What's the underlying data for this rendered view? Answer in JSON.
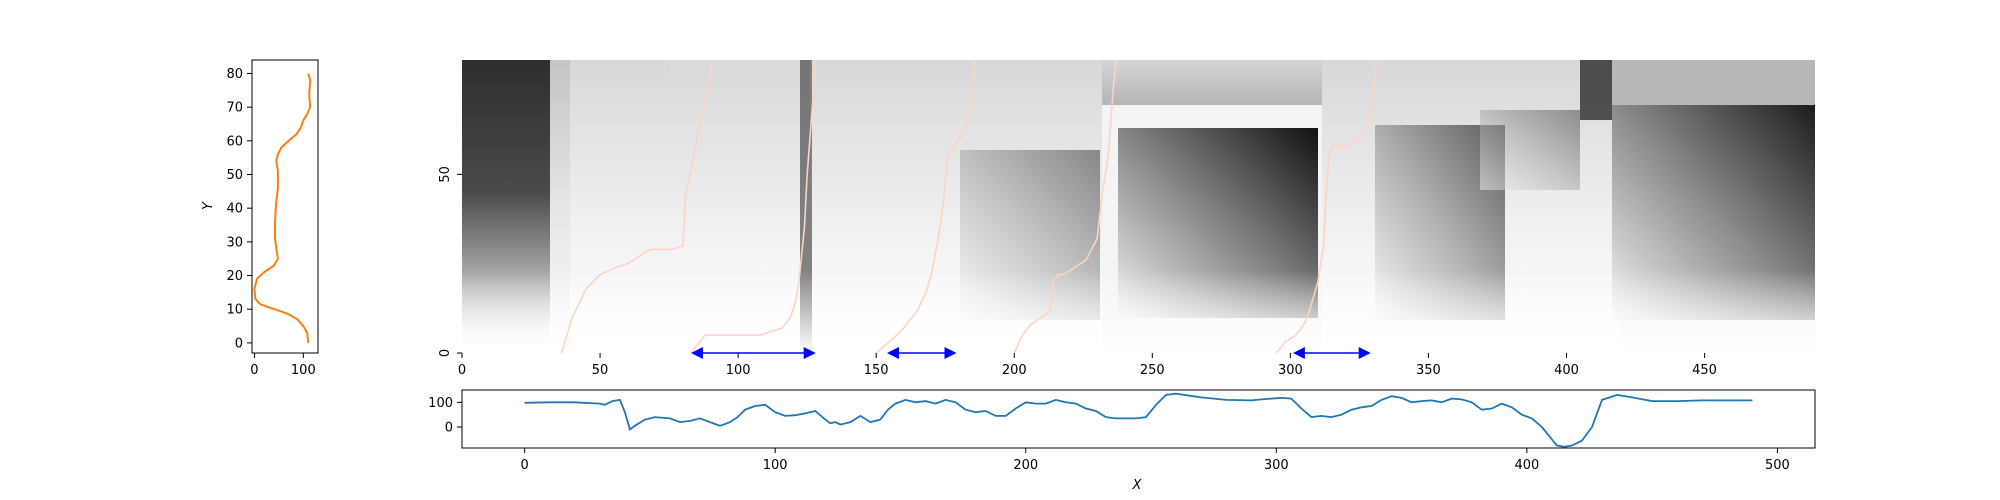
{
  "chart_data": [
    {
      "type": "line",
      "panel": "left-profile",
      "xlabel": "",
      "ylabel": "Y",
      "xlim": [
        -5,
        130
      ],
      "ylim": [
        -3,
        84
      ],
      "xticks": [
        0,
        100
      ],
      "yticks": [
        0,
        10,
        20,
        30,
        40,
        50,
        60,
        70,
        80
      ],
      "grid": false,
      "color": "#ff7f0e",
      "series": [
        {
          "x": [
            110,
            108,
            100,
            88,
            70,
            52,
            30,
            12,
            2,
            0,
            5,
            20,
            40,
            48,
            45,
            42,
            42,
            44,
            48,
            48,
            45,
            48,
            55,
            70,
            86,
            95,
            100,
            108,
            114,
            112,
            114,
            110
          ],
          "y": [
            0,
            3,
            5,
            7,
            8.5,
            9.5,
            10.5,
            11.5,
            13,
            16,
            19,
            21,
            23,
            25,
            28,
            31,
            36,
            41,
            46,
            51,
            54,
            56,
            58,
            60,
            62,
            64,
            66,
            68,
            70,
            74,
            78,
            80
          ]
        }
      ]
    },
    {
      "type": "heatmap",
      "panel": "main-cost-matrix",
      "xlim": [
        0,
        490
      ],
      "ylim": [
        0,
        82
      ],
      "xticks": [
        0,
        50,
        100,
        150,
        200,
        250,
        300,
        350,
        400,
        450
      ],
      "yticks": [
        0,
        50
      ],
      "colormap": "gray",
      "path_color": "#ffd2c2",
      "arrow_color": "#0000ff",
      "paths": [
        {
          "x": [
            36,
            40,
            45,
            50,
            56,
            60,
            64,
            68,
            72,
            76,
            80,
            81,
            84,
            86,
            88,
            89,
            90,
            90.5
          ],
          "y": [
            0,
            10,
            18,
            22,
            24,
            25,
            27,
            29,
            29,
            29,
            30,
            45,
            55,
            65,
            70,
            75,
            78,
            82
          ]
        },
        {
          "x": [
            83,
            86,
            88,
            92,
            98,
            108,
            116,
            119,
            121,
            122,
            124,
            125,
            126,
            127,
            128
          ],
          "y": [
            0,
            3,
            5,
            5,
            5,
            5,
            7,
            10,
            15,
            20,
            35,
            50,
            60,
            70,
            82
          ]
        },
        {
          "x": [
            150,
            153,
            156,
            160,
            165,
            168,
            170,
            172,
            174,
            176,
            180,
            182,
            184,
            186
          ],
          "y": [
            0,
            2,
            4,
            7,
            12,
            17,
            22,
            30,
            40,
            55,
            60,
            62,
            70,
            82
          ]
        },
        {
          "x": [
            200,
            203,
            206,
            210,
            213,
            214,
            216,
            218,
            220,
            226,
            230,
            232,
            234,
            235,
            236,
            237
          ],
          "y": [
            0,
            5,
            8,
            10,
            12,
            20,
            22,
            22,
            23,
            26,
            32,
            45,
            55,
            65,
            75,
            82
          ]
        },
        {
          "x": [
            295,
            298,
            302,
            305,
            307,
            310,
            312,
            313,
            314,
            315,
            320,
            325,
            328,
            330,
            331
          ],
          "y": [
            0,
            3,
            5,
            8,
            12,
            20,
            30,
            45,
            55,
            58,
            58,
            60,
            65,
            70,
            82
          ]
        }
      ],
      "arrows": [
        {
          "x1": 84,
          "x2": 127
        },
        {
          "x1": 155,
          "x2": 178
        },
        {
          "x1": 302,
          "x2": 328
        }
      ]
    },
    {
      "type": "line",
      "panel": "bottom-signal",
      "xlabel": "X",
      "ylabel": "",
      "xlim": [
        -25,
        515
      ],
      "ylim": [
        -85,
        150
      ],
      "xticks": [
        0,
        100,
        200,
        300,
        400,
        500
      ],
      "yticks": [
        0,
        100
      ],
      "grid": false,
      "color": "#1f77b4",
      "series": [
        {
          "x": [
            0,
            10,
            20,
            30,
            32,
            35,
            38,
            40,
            42,
            44,
            48,
            52,
            58,
            62,
            66,
            70,
            74,
            78,
            82,
            85,
            88,
            92,
            96,
            100,
            104,
            108,
            112,
            116,
            120,
            122,
            124,
            126,
            130,
            134,
            138,
            142,
            145,
            148,
            152,
            156,
            160,
            164,
            168,
            172,
            176,
            180,
            184,
            188,
            192,
            196,
            200,
            204,
            208,
            212,
            216,
            220,
            224,
            228,
            232,
            236,
            240,
            244,
            248,
            252,
            256,
            260,
            270,
            280,
            290,
            294,
            298,
            302,
            306,
            310,
            314,
            318,
            322,
            326,
            330,
            334,
            338,
            342,
            346,
            350,
            354,
            358,
            362,
            366,
            370,
            374,
            378,
            382,
            386,
            390,
            394,
            398,
            402,
            406,
            410,
            412,
            415,
            418,
            422,
            426,
            430,
            436,
            442,
            450,
            460,
            470,
            480,
            490
          ],
          "y": [
            98,
            100,
            100,
            95,
            90,
            105,
            110,
            60,
            -10,
            5,
            30,
            40,
            35,
            20,
            25,
            35,
            20,
            5,
            20,
            40,
            70,
            85,
            90,
            60,
            45,
            48,
            55,
            65,
            30,
            15,
            20,
            10,
            20,
            45,
            20,
            30,
            70,
            95,
            110,
            100,
            105,
            95,
            110,
            100,
            70,
            60,
            65,
            45,
            45,
            75,
            100,
            95,
            95,
            110,
            100,
            95,
            75,
            65,
            40,
            35,
            35,
            35,
            40,
            90,
            130,
            135,
            120,
            110,
            108,
            112,
            115,
            118,
            115,
            75,
            40,
            45,
            40,
            50,
            70,
            80,
            85,
            110,
            125,
            118,
            100,
            105,
            108,
            100,
            115,
            112,
            100,
            70,
            75,
            95,
            80,
            50,
            35,
            0,
            -50,
            -75,
            -80,
            -75,
            -55,
            0,
            110,
            130,
            120,
            105,
            105,
            108,
            108,
            108
          ]
        }
      ]
    }
  ]
}
